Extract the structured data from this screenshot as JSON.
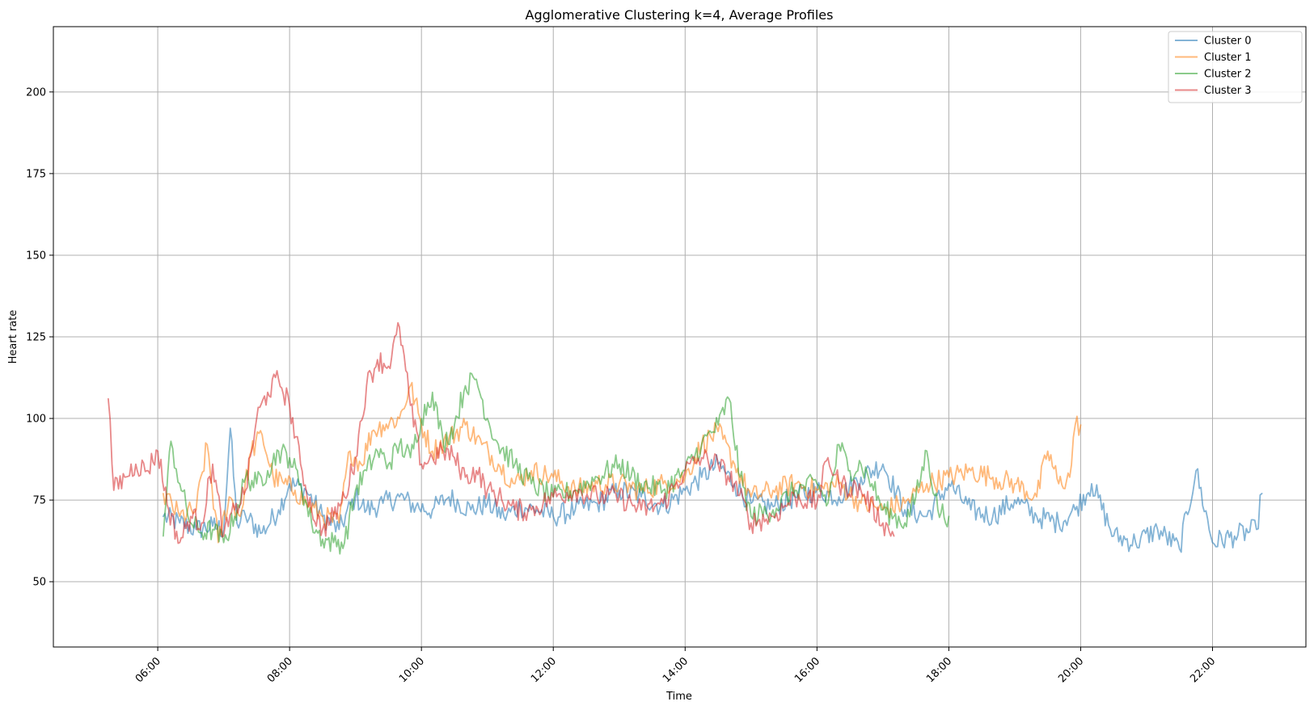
{
  "chart_data": {
    "type": "line",
    "title": "Agglomerative Clustering k=4, Average Profiles",
    "xlabel": "Time",
    "ylabel": "Heart rate",
    "xlim": [
      "04:25",
      "23:25"
    ],
    "ylim": [
      30,
      220
    ],
    "xticks": [
      "06:00",
      "08:00",
      "10:00",
      "12:00",
      "14:00",
      "16:00",
      "18:00",
      "20:00",
      "22:00"
    ],
    "yticks": [
      50,
      75,
      100,
      125,
      150,
      175,
      200
    ],
    "grid": true,
    "legend": "top-right",
    "colors": [
      "#1f77b4",
      "#ff7f0e",
      "#2ca02c",
      "#d62728"
    ],
    "series": [
      {
        "name": "Cluster 0",
        "color": "#1f77b4",
        "x": [
          "06:05",
          "06:20",
          "06:35",
          "06:50",
          "07:00",
          "07:06",
          "07:12",
          "07:20",
          "07:35",
          "07:50",
          "08:00",
          "08:15",
          "08:30",
          "08:45",
          "09:00",
          "09:10",
          "09:25",
          "09:40",
          "09:55",
          "10:10",
          "10:25",
          "10:45",
          "11:00",
          "11:15",
          "11:30",
          "11:45",
          "12:00",
          "12:20",
          "12:40",
          "13:00",
          "13:20",
          "13:40",
          "14:00",
          "14:15",
          "14:30",
          "14:45",
          "15:00",
          "15:20",
          "15:40",
          "16:00",
          "16:20",
          "16:40",
          "17:00",
          "17:20",
          "17:40",
          "18:00",
          "18:20",
          "18:40",
          "19:00",
          "19:20",
          "19:40",
          "19:55",
          "20:10",
          "20:30",
          "20:50",
          "21:10",
          "21:30",
          "21:45",
          "22:00",
          "22:20",
          "22:40",
          "22:45"
        ],
        "y": [
          70,
          68,
          66,
          67,
          66,
          97,
          68,
          70,
          65,
          72,
          80,
          78,
          70,
          66,
          76,
          72,
          74,
          76,
          73,
          72,
          76,
          72,
          74,
          70,
          73,
          72,
          70,
          72,
          74,
          78,
          76,
          73,
          78,
          82,
          86,
          80,
          74,
          73,
          76,
          78,
          76,
          82,
          86,
          72,
          70,
          80,
          72,
          70,
          75,
          70,
          68,
          72,
          80,
          64,
          62,
          66,
          60,
          84,
          62,
          64,
          66,
          77
        ]
      },
      {
        "name": "Cluster 1",
        "color": "#ff7f0e",
        "x": [
          "06:05",
          "06:20",
          "06:35",
          "06:45",
          "06:55",
          "07:05",
          "07:15",
          "07:25",
          "07:35",
          "07:45",
          "07:55",
          "08:05",
          "08:15",
          "08:30",
          "08:45",
          "08:55",
          "09:05",
          "09:15",
          "09:25",
          "09:40",
          "09:50",
          "10:00",
          "10:10",
          "10:25",
          "10:40",
          "10:55",
          "11:10",
          "11:25",
          "11:40",
          "12:00",
          "12:20",
          "12:40",
          "13:00",
          "13:20",
          "13:40",
          "14:00",
          "14:15",
          "14:30",
          "14:45",
          "15:00",
          "15:20",
          "15:40",
          "16:00",
          "16:20",
          "16:40",
          "17:00",
          "17:20",
          "17:40",
          "18:00",
          "18:20",
          "18:40",
          "19:00",
          "19:20",
          "19:30",
          "19:40",
          "19:50",
          "19:55",
          "20:00"
        ],
        "y": [
          77,
          70,
          72,
          92,
          62,
          76,
          70,
          90,
          95,
          82,
          80,
          78,
          74,
          70,
          68,
          90,
          86,
          96,
          98,
          100,
          110,
          98,
          90,
          94,
          98,
          92,
          86,
          80,
          84,
          82,
          78,
          80,
          80,
          78,
          80,
          82,
          92,
          96,
          86,
          76,
          78,
          80,
          78,
          80,
          74,
          72,
          74,
          80,
          82,
          84,
          82,
          80,
          76,
          90,
          80,
          82,
          98,
          98
        ]
      },
      {
        "name": "Cluster 2",
        "color": "#2ca02c",
        "x": [
          "06:05",
          "06:12",
          "06:20",
          "06:30",
          "06:40",
          "06:50",
          "07:00",
          "07:10",
          "07:20",
          "07:30",
          "07:40",
          "07:50",
          "08:00",
          "08:10",
          "08:20",
          "08:30",
          "08:40",
          "08:50",
          "09:00",
          "09:10",
          "09:20",
          "09:30",
          "09:40",
          "09:50",
          "10:00",
          "10:10",
          "10:20",
          "10:30",
          "10:40",
          "10:50",
          "11:00",
          "11:10",
          "11:25",
          "11:40",
          "12:00",
          "12:20",
          "12:40",
          "13:00",
          "13:20",
          "13:40",
          "14:00",
          "14:15",
          "14:30",
          "14:40",
          "14:50",
          "15:00",
          "15:20",
          "15:40",
          "16:00",
          "16:10",
          "16:20",
          "16:30",
          "16:40",
          "16:50",
          "17:00",
          "17:10",
          "17:20",
          "17:30",
          "17:40",
          "17:50",
          "18:00"
        ],
        "y": [
          64,
          93,
          80,
          68,
          65,
          66,
          62,
          70,
          82,
          80,
          84,
          90,
          88,
          80,
          68,
          63,
          62,
          62,
          78,
          84,
          90,
          86,
          92,
          88,
          100,
          108,
          92,
          98,
          110,
          112,
          100,
          92,
          86,
          80,
          76,
          78,
          82,
          86,
          80,
          78,
          84,
          92,
          98,
          106,
          82,
          70,
          72,
          78,
          80,
          74,
          92,
          84,
          86,
          80,
          72,
          70,
          68,
          76,
          90,
          72,
          70
        ]
      },
      {
        "name": "Cluster 3",
        "color": "#d62728",
        "x": [
          "05:15",
          "05:20",
          "05:30",
          "05:40",
          "05:50",
          "06:00",
          "06:10",
          "06:20",
          "06:30",
          "06:40",
          "06:50",
          "07:00",
          "07:10",
          "07:20",
          "07:30",
          "07:40",
          "07:50",
          "08:00",
          "08:10",
          "08:20",
          "08:30",
          "08:40",
          "08:50",
          "09:00",
          "09:10",
          "09:20",
          "09:30",
          "09:40",
          "09:50",
          "10:00",
          "10:10",
          "10:20",
          "10:30",
          "10:40",
          "10:50",
          "11:00",
          "11:10",
          "11:25",
          "11:40",
          "12:00",
          "12:20",
          "12:40",
          "13:00",
          "13:20",
          "13:40",
          "14:00",
          "14:15",
          "14:30",
          "14:45",
          "15:00",
          "15:20",
          "15:40",
          "16:00",
          "16:10",
          "16:20",
          "16:40",
          "17:00",
          "17:10"
        ],
        "y": [
          106,
          78,
          82,
          86,
          84,
          90,
          72,
          62,
          70,
          68,
          86,
          64,
          72,
          78,
          100,
          108,
          112,
          104,
          86,
          72,
          66,
          70,
          76,
          88,
          110,
          118,
          116,
          128,
          104,
          86,
          88,
          90,
          88,
          82,
          84,
          78,
          76,
          72,
          72,
          76,
          78,
          76,
          76,
          72,
          74,
          84,
          88,
          86,
          80,
          68,
          70,
          76,
          74,
          88,
          80,
          78,
          68,
          64
        ]
      }
    ]
  }
}
